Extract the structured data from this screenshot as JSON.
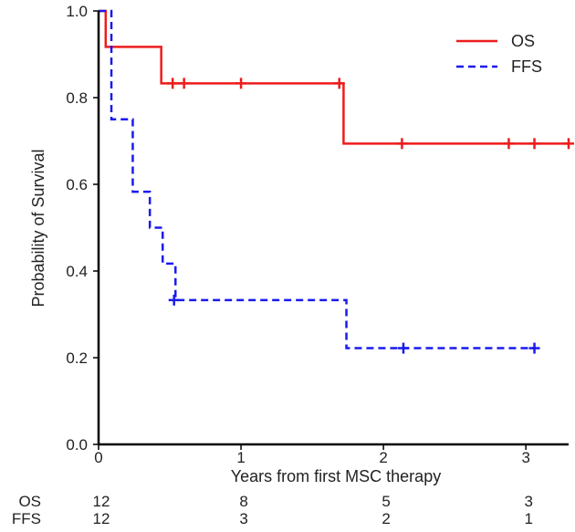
{
  "chart_data": {
    "type": "line",
    "subtype": "kaplan-meier-step",
    "title": "",
    "xlabel": "Years from first MSC therapy",
    "ylabel": "Probability of Survival",
    "xlim": [
      0,
      3.3
    ],
    "ylim": [
      0,
      1.0
    ],
    "x_ticks": [
      0,
      1,
      2,
      3
    ],
    "x_tick_labels": [
      "0",
      "1",
      "2",
      "3"
    ],
    "y_ticks": [
      0,
      0.2,
      0.4,
      0.6,
      0.8,
      1.0
    ],
    "y_tick_labels": [
      "0.0",
      "0.2",
      "0.4",
      "0.6",
      "0.8",
      "1.0"
    ],
    "legend_position": "top-right",
    "series": [
      {
        "name": "OS",
        "color": "#ee1c1c",
        "dash": "solid",
        "steps": [
          [
            0,
            1.0
          ],
          [
            0.05,
            0.917
          ],
          [
            0.44,
            0.833
          ],
          [
            1.72,
            0.694
          ],
          [
            3.3,
            0.694
          ]
        ],
        "censored": [
          [
            0.52,
            0.833
          ],
          [
            0.6,
            0.833
          ],
          [
            1.0,
            0.833
          ],
          [
            1.69,
            0.833
          ],
          [
            2.13,
            0.694
          ],
          [
            2.88,
            0.694
          ],
          [
            3.06,
            0.694
          ],
          [
            3.3,
            0.694
          ]
        ]
      },
      {
        "name": "FFS",
        "color": "#1a1aee",
        "dash": "dashed",
        "steps": [
          [
            0,
            1.0
          ],
          [
            0.09,
            0.75
          ],
          [
            0.24,
            0.583
          ],
          [
            0.36,
            0.5
          ],
          [
            0.45,
            0.417
          ],
          [
            0.54,
            0.333
          ],
          [
            1.74,
            0.222
          ],
          [
            3.06,
            0.222
          ]
        ],
        "censored": [
          [
            0.53,
            0.333
          ],
          [
            2.14,
            0.222
          ],
          [
            3.06,
            0.222
          ]
        ]
      }
    ],
    "risk_table": {
      "times": [
        0,
        1,
        2,
        3
      ],
      "rows": [
        {
          "label": "OS",
          "counts": [
            "12",
            "8",
            "5",
            "3"
          ]
        },
        {
          "label": "FFS",
          "counts": [
            "12",
            "3",
            "2",
            "1"
          ]
        }
      ]
    }
  }
}
